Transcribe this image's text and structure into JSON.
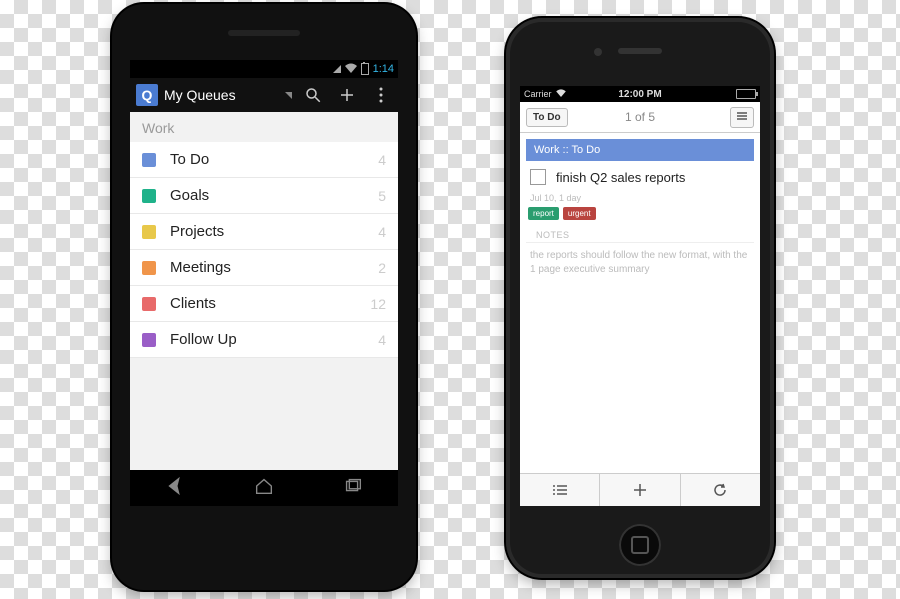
{
  "android": {
    "status": {
      "time": "1:14"
    },
    "actionbar": {
      "logo_letter": "Q",
      "title": "My Queues"
    },
    "section_label": "Work",
    "rows": [
      {
        "label": "To Do",
        "count": "4",
        "color": "#6a8fd8"
      },
      {
        "label": "Goals",
        "count": "5",
        "color": "#1fb28a"
      },
      {
        "label": "Projects",
        "count": "4",
        "color": "#e8c84a"
      },
      {
        "label": "Meetings",
        "count": "2",
        "color": "#f0954a"
      },
      {
        "label": "Clients",
        "count": "12",
        "color": "#e86a6a"
      },
      {
        "label": "Follow Up",
        "count": "4",
        "color": "#9a5ec7"
      }
    ]
  },
  "iphone": {
    "status": {
      "carrier": "Carrier",
      "time": "12:00 PM"
    },
    "nav": {
      "back": "To Do",
      "title": "1 of 5"
    },
    "crumb": "Work :: To Do",
    "task_title": "finish Q2 sales reports",
    "meta": "Jul 10, 1 day",
    "tags": [
      {
        "text": "report",
        "color": "#2a9d6f"
      },
      {
        "text": "urgent",
        "color": "#b9443f"
      }
    ],
    "notes_header": "NOTES",
    "notes_body": "the reports should follow the new format, with the 1 page executive summary"
  }
}
